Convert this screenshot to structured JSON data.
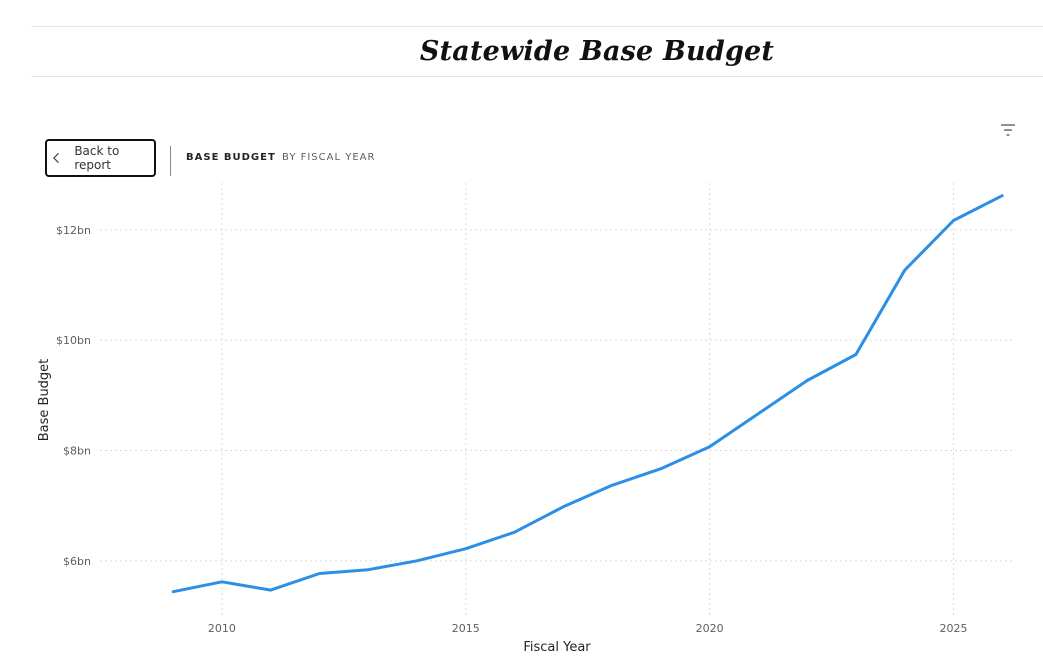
{
  "page": {
    "title": "Statewide Base Budget"
  },
  "toolbar": {
    "back_label": "Back to report",
    "breadcrumb_active": "BASE BUDGET",
    "breadcrumb_next": "BY FISCAL YEAR",
    "filter_icon": "filter-icon",
    "back_icon": "chevron-left-icon"
  },
  "colors": {
    "line": "#2b8fe6",
    "grid": "#dcdcdc"
  },
  "chart_data": {
    "type": "line",
    "title": "",
    "xlabel": "Fiscal Year",
    "ylabel": "Base Budget",
    "x_ticks": [
      2010,
      2015,
      2020,
      2025
    ],
    "x_tick_labels": [
      "2010",
      "2015",
      "2020",
      "2025"
    ],
    "y_ticks": [
      6,
      8,
      10,
      12
    ],
    "y_tick_labels": [
      "$6bn",
      "$8bn",
      "$10bn",
      "$12bn"
    ],
    "xlim": [
      2007.5,
      2026.2
    ],
    "ylim": [
      5.0,
      12.85
    ],
    "grid": true,
    "series": [
      {
        "x": [
          2009,
          2010,
          2011,
          2012,
          2013,
          2014,
          2015,
          2016,
          2017,
          2018,
          2019,
          2020,
          2021,
          2022,
          2023,
          2024,
          2025,
          2026
        ],
        "values": [
          5.44,
          5.62,
          5.47,
          5.77,
          5.84,
          6.0,
          6.22,
          6.52,
          6.98,
          7.37,
          7.67,
          8.07,
          8.67,
          9.27,
          9.74,
          11.27,
          12.17,
          12.62
        ]
      }
    ]
  }
}
